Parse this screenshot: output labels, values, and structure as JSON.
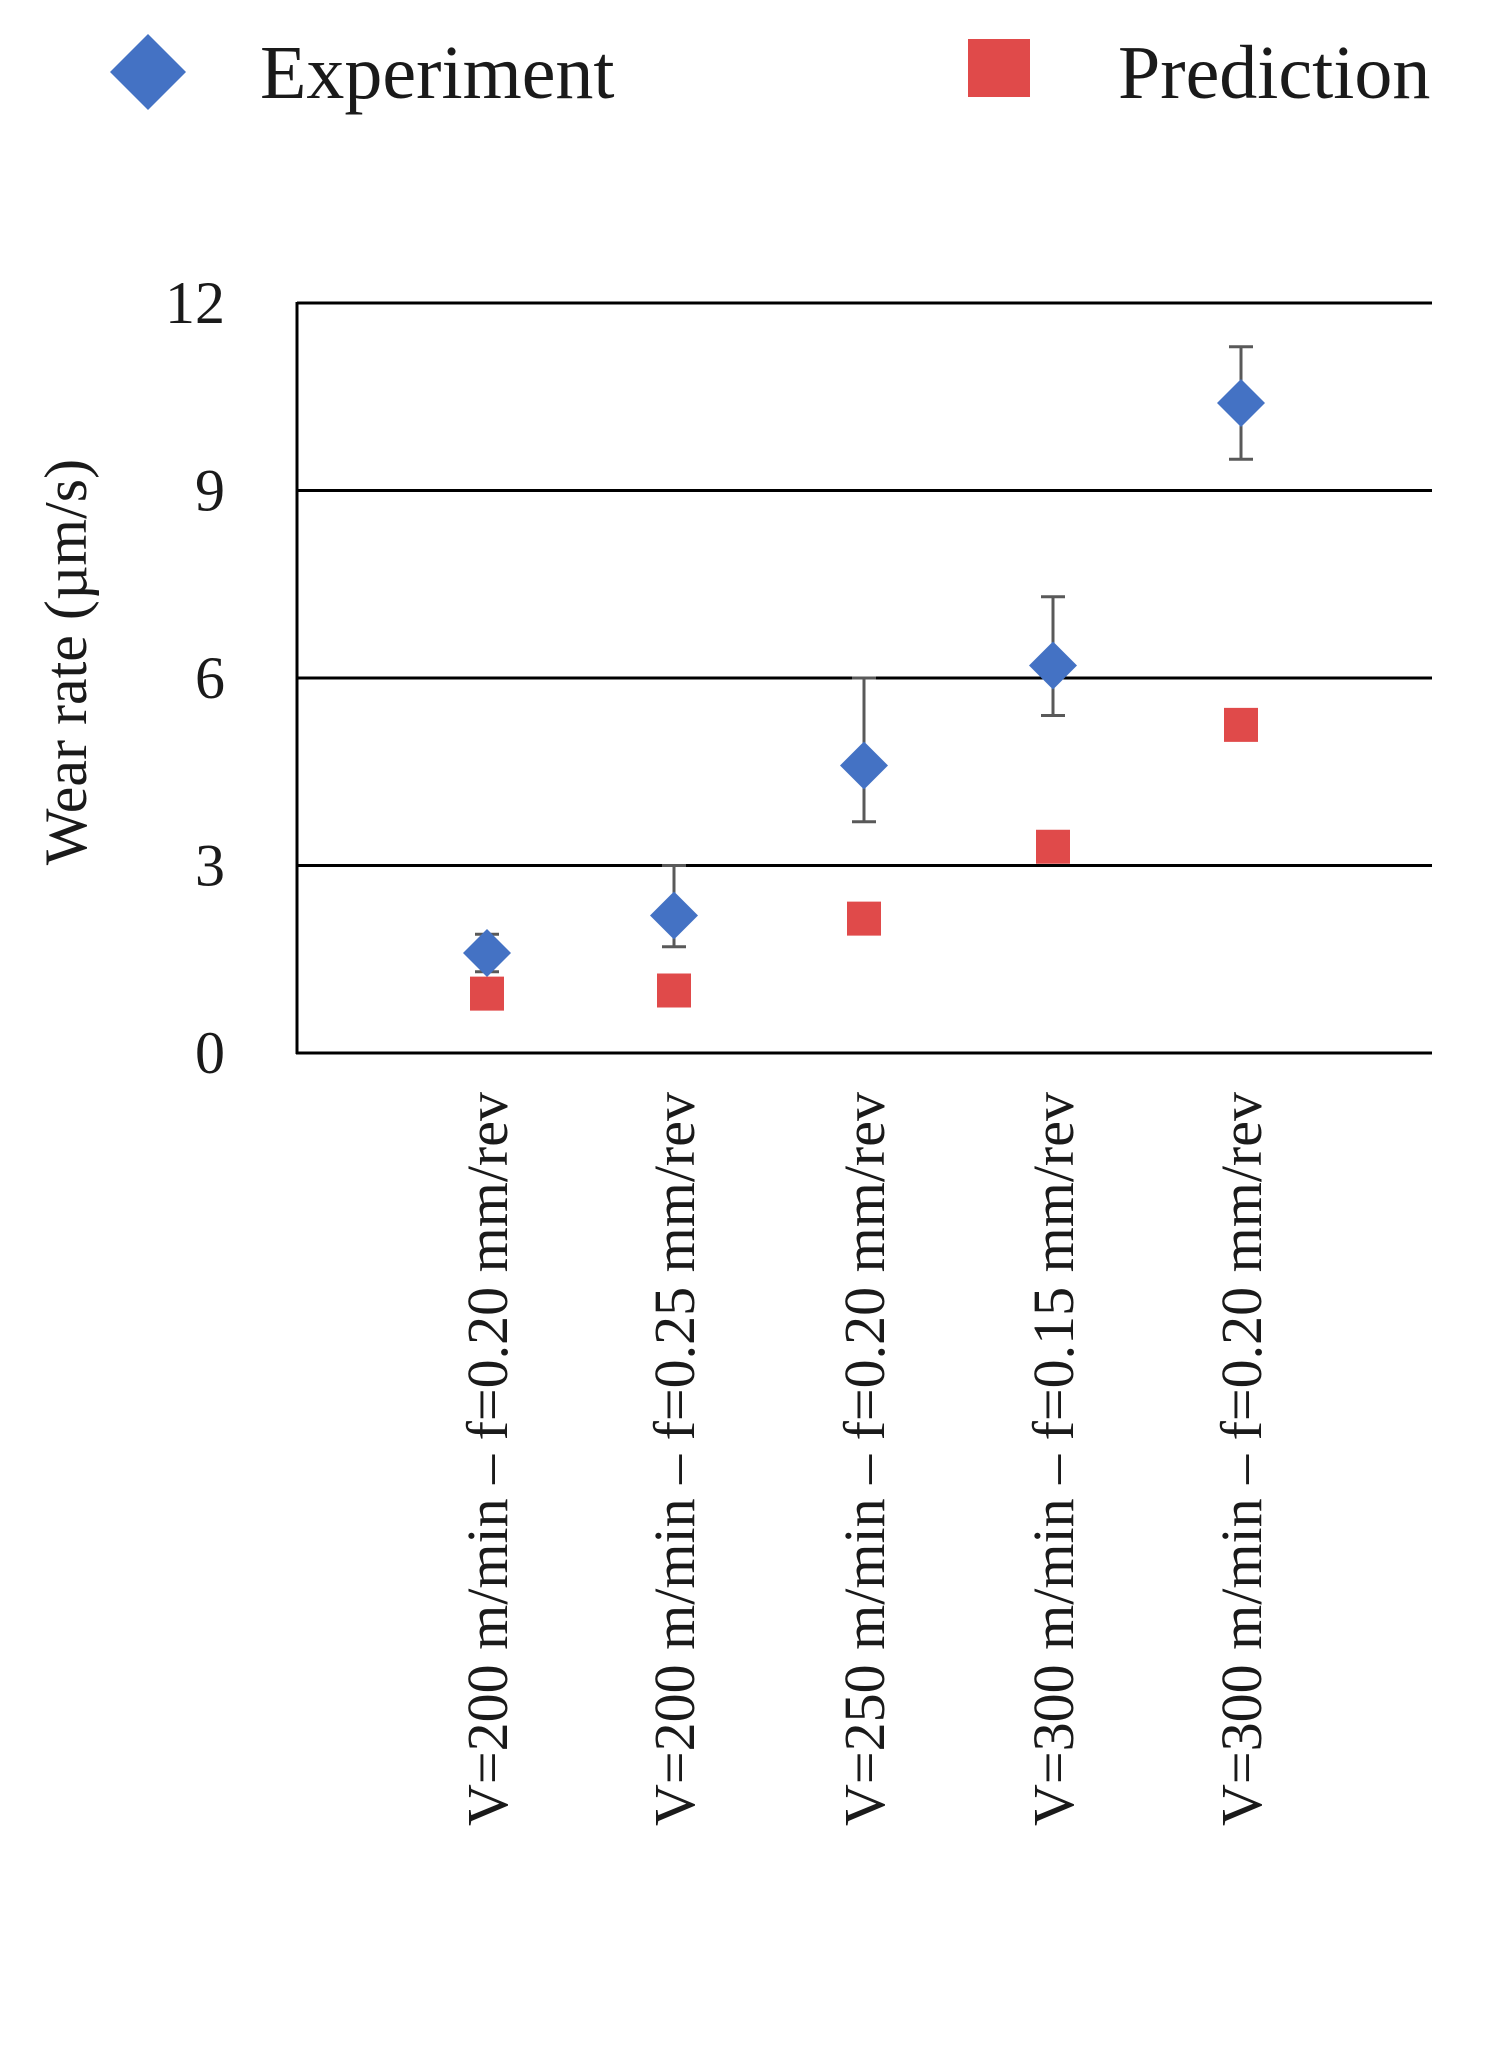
{
  "chart_data": {
    "type": "scatter",
    "title": "",
    "xlabel": "",
    "ylabel": "Wear rate (µm/s)",
    "ylim": [
      0,
      12
    ],
    "yticks": [
      0,
      3,
      6,
      9,
      12
    ],
    "grid": true,
    "legend_position": "top",
    "categories": [
      "V=200 m/min – f=0.20 mm/rev",
      "V=200 m/min – f=0.25 mm/rev",
      "V=250 m/min – f=0.20 mm/rev",
      "V=300 m/min – f=0.15 mm/rev",
      "V=300 m/min – f=0.20 mm/rev"
    ],
    "series": [
      {
        "name": "Experiment",
        "marker": "diamond",
        "color": "#4472C4",
        "values": [
          1.6,
          2.2,
          4.6,
          6.2,
          10.4
        ],
        "error_low": [
          1.3,
          1.7,
          3.7,
          5.4,
          9.5
        ],
        "error_high": [
          1.9,
          3.0,
          6.0,
          7.3,
          11.3
        ]
      },
      {
        "name": "Prediction",
        "marker": "square",
        "color": "#E04A4A",
        "values": [
          0.95,
          1.0,
          2.15,
          3.3,
          5.25
        ]
      }
    ]
  }
}
